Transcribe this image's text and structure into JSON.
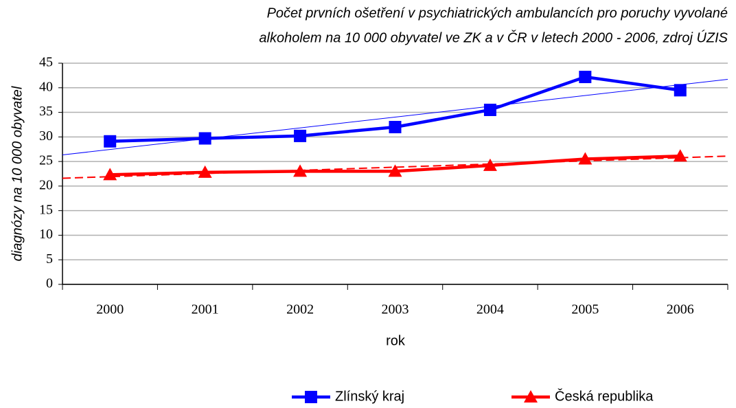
{
  "chart_data": {
    "type": "line",
    "title": [
      "Počet prvních ošetření v psychiatrických ambulancích pro poruchy vyvolané",
      "alkoholem na 10 000 obyvatel ve ZK a v ČR v letech 2000 - 2006, zdroj ÚZIS"
    ],
    "x_label": "rok",
    "y_label": "diagnózy na 10 000 obyvatel",
    "categories": [
      "2000",
      "2001",
      "2002",
      "2003",
      "2004",
      "2005",
      "2006"
    ],
    "series": [
      {
        "name": "Zlínský kraj",
        "color": "#0000ff",
        "marker": "square",
        "trendline": "solid",
        "values": [
          29.1,
          29.7,
          30.2,
          32.0,
          35.5,
          42.2,
          39.5
        ]
      },
      {
        "name": "Česká republika",
        "color": "#ff0000",
        "marker": "triangle",
        "trendline": "dashed",
        "values": [
          22.3,
          22.8,
          23.0,
          23.0,
          24.2,
          25.5,
          26.1
        ]
      }
    ],
    "ylim": [
      0,
      45
    ],
    "yticks": [
      0,
      5,
      10,
      15,
      20,
      25,
      30,
      35,
      40,
      45
    ],
    "grid": true,
    "legend": "bottom"
  }
}
